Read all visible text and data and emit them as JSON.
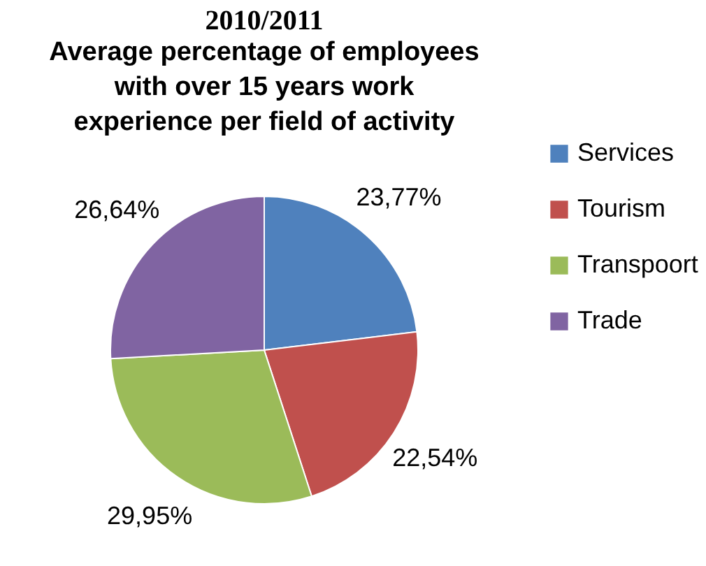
{
  "chart_data": {
    "type": "pie",
    "title": "Average percentage of employees\nwith over 15 years work\nexperience per field of activity",
    "annotations": [
      "2010/2011"
    ],
    "categories": [
      "Services",
      "Tourism",
      "Transpoort",
      "Trade"
    ],
    "values": [
      23.77,
      22.54,
      29.95,
      26.64
    ],
    "value_labels": [
      "23,77%",
      "22,54%",
      "29,95%",
      "26,64%"
    ],
    "colors": [
      "#4f81bd",
      "#c0504d",
      "#9bbb59",
      "#8064a2"
    ],
    "legend": "right"
  }
}
